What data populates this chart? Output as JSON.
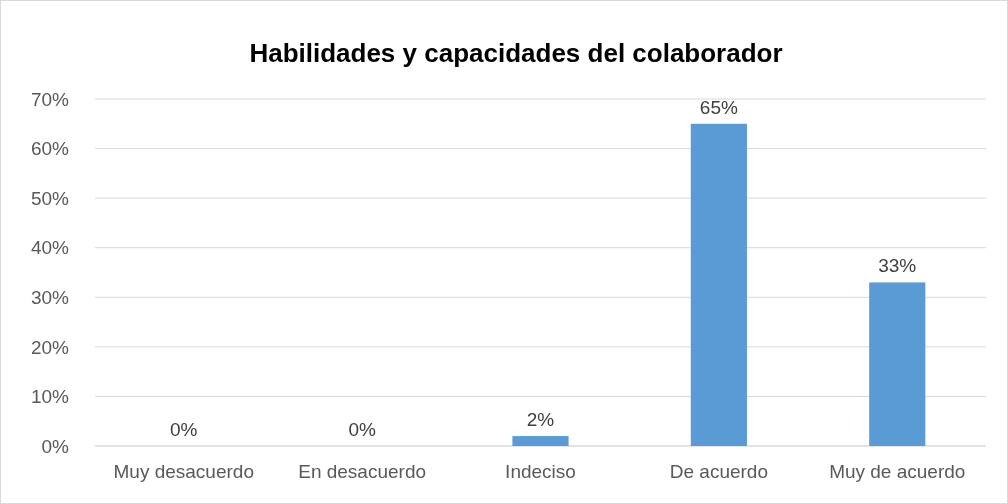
{
  "chart_data": {
    "type": "bar",
    "title": "Habilidades y capacidades del colaborador",
    "categories": [
      "Muy desacuerdo",
      "En desacuerdo",
      "Indeciso",
      "De acuerdo",
      "Muy de acuerdo"
    ],
    "values": [
      0,
      0,
      2,
      65,
      33
    ],
    "value_labels": [
      "0%",
      "0%",
      "2%",
      "65%",
      "33%"
    ],
    "color": "#5b9bd5",
    "ylim": [
      0,
      70
    ],
    "yticks": [
      {
        "value": 0,
        "label": "0%"
      },
      {
        "value": 10,
        "label": "10%"
      },
      {
        "value": 20,
        "label": "20%"
      },
      {
        "value": 30,
        "label": "30%"
      },
      {
        "value": 40,
        "label": "40%"
      },
      {
        "value": 50,
        "label": "50%"
      },
      {
        "value": 60,
        "label": "60%"
      },
      {
        "value": 70,
        "label": "70%"
      }
    ],
    "grid": "y"
  }
}
